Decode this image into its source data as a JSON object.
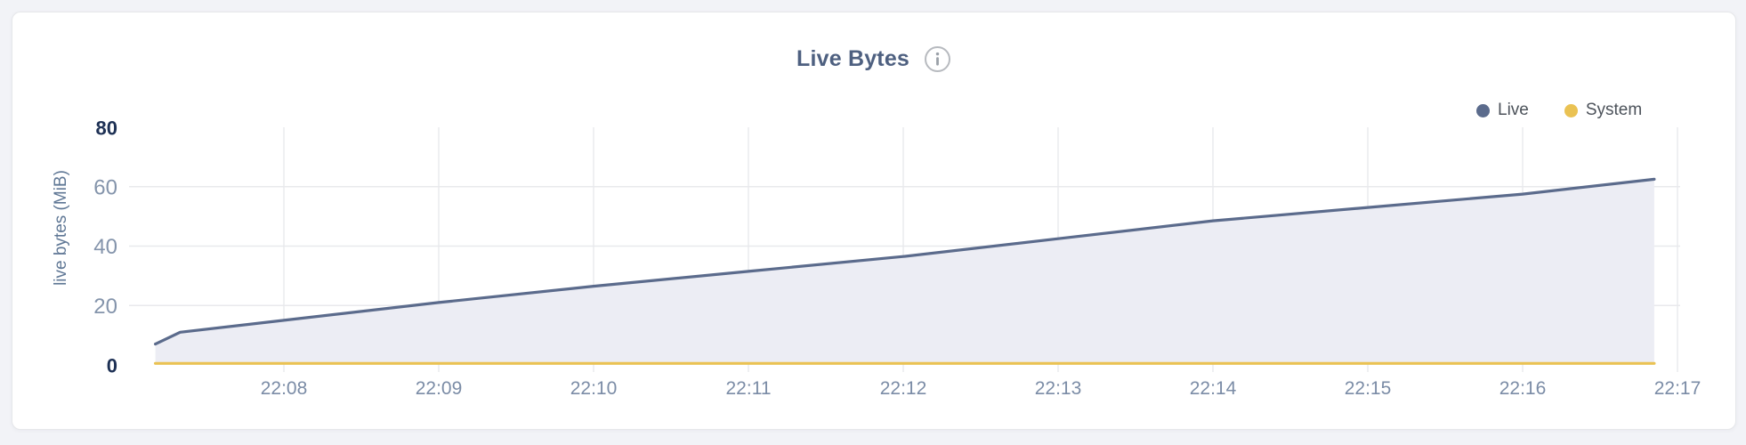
{
  "header": {
    "title": "Live Bytes"
  },
  "legend": {
    "items": [
      {
        "label": "Live",
        "color": "#5b6b8c"
      },
      {
        "label": "System",
        "color": "#eac253"
      }
    ]
  },
  "chart_data": {
    "type": "area",
    "title": "Live Bytes",
    "xlabel": "",
    "ylabel": "live bytes (MiB)",
    "x_unit": "time of day (HH:MM)",
    "xticks": [
      "22:08",
      "22:09",
      "22:10",
      "22:11",
      "22:12",
      "22:13",
      "22:14",
      "22:15",
      "22:16",
      "22:17"
    ],
    "xticks_minutes": [
      8,
      9,
      10,
      11,
      12,
      13,
      14,
      15,
      16,
      17
    ],
    "yticks": [
      0,
      20,
      40,
      60,
      80
    ],
    "ylim": [
      0,
      80
    ],
    "xlim_minutes": [
      7,
      17
    ],
    "grid": true,
    "legend_position": "top-right",
    "series": [
      {
        "name": "Live",
        "color": "#5b6b8c",
        "fill": "#ecedf4",
        "points_minutes_mib": [
          [
            7.17,
            7
          ],
          [
            7.33,
            11
          ],
          [
            8,
            15
          ],
          [
            9,
            21
          ],
          [
            10,
            26.5
          ],
          [
            11,
            31.5
          ],
          [
            12,
            36.5
          ],
          [
            13,
            42.5
          ],
          [
            14,
            48.5
          ],
          [
            15,
            53
          ],
          [
            16,
            57.5
          ],
          [
            16.85,
            62.5
          ]
        ]
      },
      {
        "name": "System",
        "color": "#eac253",
        "fill": "none",
        "points_minutes_mib": [
          [
            7.17,
            0.5
          ],
          [
            16.85,
            0.5
          ]
        ]
      }
    ],
    "style": {
      "grid_color": "#e8e9ec",
      "ytick_emphasis_color": "#1d3054",
      "ytick_color": "#8494ab",
      "xtick_color": "#7b8ca6",
      "title_color": "#4e6080",
      "info_icon_color": "#b7babf"
    }
  }
}
